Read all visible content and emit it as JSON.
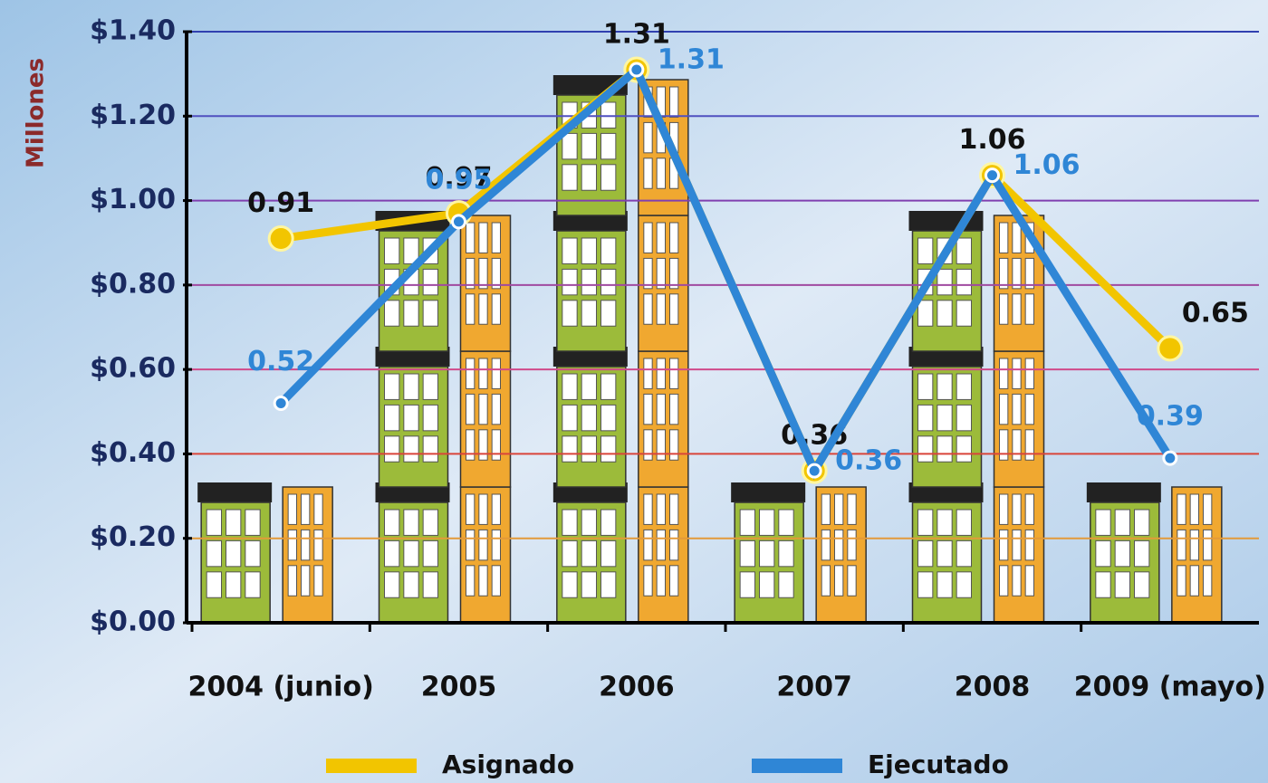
{
  "chart_data": {
    "type": "line",
    "y_label": "Millones",
    "categories": [
      "2004 (junio)",
      "2005",
      "2006",
      "2007",
      "2008",
      "2009 (mayo)"
    ],
    "series": [
      {
        "name": "Asignado",
        "color": "#f2c500",
        "values": [
          0.91,
          0.97,
          1.31,
          0.36,
          1.06,
          0.65
        ]
      },
      {
        "name": "Ejecutado",
        "color": "#2f86d6",
        "values": [
          0.52,
          0.95,
          1.31,
          0.36,
          1.06,
          0.39
        ]
      }
    ],
    "ylim": [
      0,
      1.4
    ],
    "yticks": [
      {
        "value": 0,
        "label": "$0.00"
      },
      {
        "value": 0.2,
        "label": "$0.20"
      },
      {
        "value": 0.4,
        "label": "$0.40"
      },
      {
        "value": 0.6,
        "label": "$0.60"
      },
      {
        "value": 0.8,
        "label": "$0.80"
      },
      {
        "value": 1.0,
        "label": "$1.00"
      },
      {
        "value": 1.2,
        "label": "$1.20"
      },
      {
        "value": 1.4,
        "label": "$1.40"
      }
    ],
    "grid": true
  }
}
